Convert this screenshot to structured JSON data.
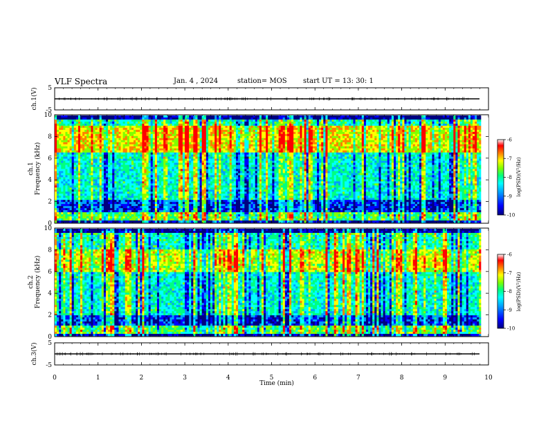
{
  "header": {
    "title": "VLF Spectra",
    "date": "Jan. 4 , 2024",
    "station": "station= MOS",
    "start_time": "start UT =  13: 30: 1"
  },
  "chart_data": [
    {
      "type": "line",
      "id": "ch1-waveform",
      "ylabel": "ch.1(V)",
      "ylim": [
        -5,
        5
      ],
      "y_ticks": [
        "5",
        "-5"
      ],
      "x": [
        0,
        10
      ],
      "values": [
        0,
        0
      ],
      "series_color": "#000000"
    },
    {
      "type": "heatmap",
      "id": "ch1-spectrogram",
      "ylabel": [
        "ch.1",
        "Frequency (kHz)"
      ],
      "ylim": [
        0,
        10
      ],
      "y_ticks": [
        "0",
        "2",
        "4",
        "6",
        "8",
        "10"
      ],
      "xlim": [
        0,
        9.83
      ],
      "colorbar": {
        "label": "log(PSD)(V²/Hz)",
        "range": [
          -10,
          -6
        ],
        "ticks": [
          "-6",
          "-7",
          "-8",
          "-9",
          "-10"
        ]
      },
      "features": {
        "intense_band_khz": [
          6.5,
          9.0
        ],
        "low_band_khz": [
          0.2,
          1.0
        ],
        "quiet_band_khz": [
          1.0,
          2.2
        ]
      }
    },
    {
      "type": "heatmap",
      "id": "ch2-spectrogram",
      "ylabel": [
        "ch.2",
        "Frequency (kHz)"
      ],
      "ylim": [
        0,
        10
      ],
      "y_ticks": [
        "0",
        "2",
        "4",
        "6",
        "8",
        "10"
      ],
      "xlim": [
        0,
        9.83
      ],
      "colorbar": {
        "label": "log(PSD)(V²/Hz)",
        "range": [
          -10,
          -6
        ],
        "ticks": [
          "-6",
          "-7",
          "-8",
          "-9",
          "-10"
        ]
      },
      "features": {
        "intense_band_khz": [
          6.0,
          8.0
        ],
        "low_band_khz": [
          0.2,
          1.0
        ],
        "quiet_band_khz": [
          1.0,
          2.0
        ]
      }
    },
    {
      "type": "line",
      "id": "ch3-waveform",
      "ylabel": "ch.3(V)",
      "ylim": [
        -5,
        5
      ],
      "y_ticks": [
        "5",
        "-5"
      ],
      "x": [
        0,
        10
      ],
      "values": [
        0,
        0
      ],
      "series_color": "#000000"
    }
  ],
  "x_axis": {
    "label": "Time (min)",
    "range": [
      0,
      10
    ],
    "ticks": [
      "0",
      "1",
      "2",
      "3",
      "4",
      "5",
      "6",
      "7",
      "8",
      "9",
      "10"
    ]
  },
  "colormap": [
    "#000080",
    "#0000ff",
    "#00a0ff",
    "#00ffff",
    "#00ff80",
    "#80ff00",
    "#ffff00",
    "#ff8000",
    "#ff0000",
    "#ffffff"
  ]
}
